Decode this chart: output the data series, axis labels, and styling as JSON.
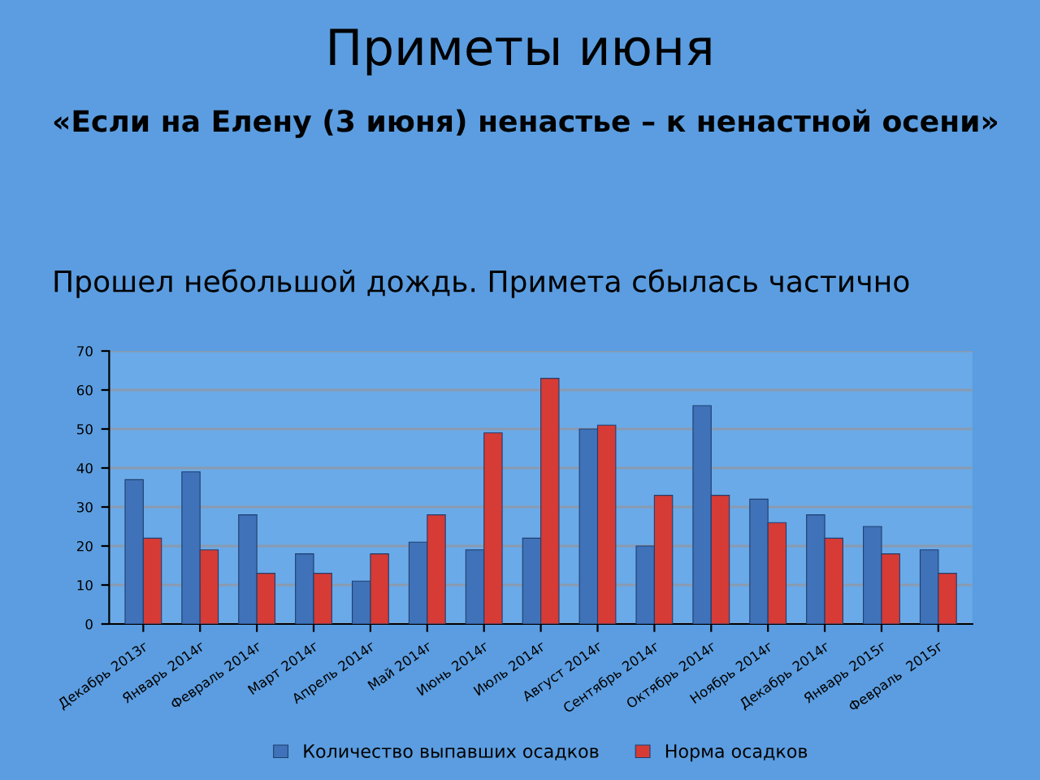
{
  "chart_data": {
    "type": "bar",
    "title": "Приметы июня",
    "annotations": [
      "«Если на Елену (3 июня) ненастье – к ненастной осени»",
      "Прошел небольшой дождь. Примета сбылась частично"
    ],
    "categories": [
      "Декабрь 2013г",
      "Январь 2014г",
      "Февраль 2014г",
      "Март 2014г",
      "Апрель 2014г",
      "Май 2014г",
      "Июнь 2014г",
      "Июль 2014г",
      "Август 2014г",
      "Сентябрь 2014г",
      "Октябрь 2014г",
      "Ноябрь 2014г",
      "Декабрь 2014г",
      "Январь 2015г",
      "Февраль  2015г"
    ],
    "series": [
      {
        "name": "Количество выпавших осадков",
        "color": "#3f72b8",
        "values": [
          37,
          39,
          28,
          18,
          11,
          21,
          19,
          22,
          50,
          20,
          56,
          32,
          28,
          25,
          19
        ]
      },
      {
        "name": "Норма осадков",
        "color": "#d63b35",
        "values": [
          22,
          19,
          13,
          13,
          18,
          28,
          49,
          63,
          51,
          33,
          33,
          26,
          22,
          18,
          13
        ]
      }
    ],
    "ylim": [
      0,
      70
    ],
    "yticks": [
      0,
      10,
      20,
      30,
      40,
      50,
      60,
      70
    ],
    "grid": "y",
    "legend": "bottom"
  }
}
